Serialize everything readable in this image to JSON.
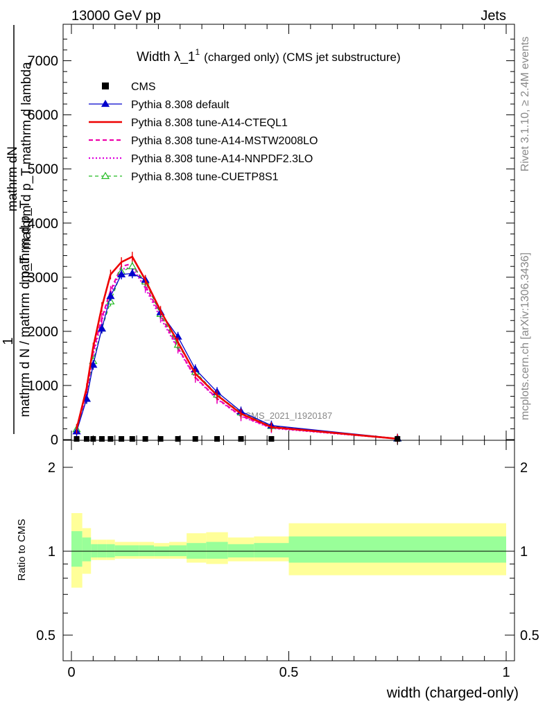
{
  "header": {
    "left": "13000 GeV pp",
    "right": "Jets"
  },
  "side": {
    "rivet": "Rivet 3.1.10, ≥ 2.4M events",
    "mcplots": "mcplots.cern.ch [arXiv:1306.3436]"
  },
  "top_panel": {
    "title_main": "Width λ_1",
    "title_sup": "1",
    "title_paren": "(charged only) (CMS jet substructure)",
    "watermark": "CMS_2021_I1920187",
    "ylabel_left": "mathrm dN",
    "ylabel_left2": "mathrm d p_T mathrm d lambda",
    "ylabel_one": "1",
    "ylabel_denom": "mathrm d N / mathrm d p_T",
    "ylabel_denom2": "mathrm d p_T",
    "yticks": [
      "0",
      "1000",
      "2000",
      "3000",
      "4000",
      "5000",
      "6000",
      "7000"
    ]
  },
  "legend": [
    {
      "label": "CMS",
      "color": "#000000",
      "style": "marker-square"
    },
    {
      "label": "Pythia 8.308 default",
      "color": "#0000cc",
      "style": "solid-triangle"
    },
    {
      "label": "Pythia 8.308 tune-A14-CTEQL1",
      "color": "#ee0000",
      "style": "solid-thick"
    },
    {
      "label": "Pythia 8.308 tune-A14-MSTW2008LO",
      "color": "#ee00aa",
      "style": "dashed"
    },
    {
      "label": "Pythia 8.308 tune-A14-NNPDF2.3LO",
      "color": "#dd00dd",
      "style": "dotted"
    },
    {
      "label": "Pythia 8.308 tune-CUETP8S1",
      "color": "#22bb22",
      "style": "dashed-open-triangle"
    }
  ],
  "ratio_panel": {
    "ylabel": "Ratio to CMS",
    "yticks": [
      "0.5",
      "1",
      "2"
    ],
    "band_inner": "#99ff99",
    "band_outer": "#ffff99"
  },
  "xaxis": {
    "label": "width (charged-only)",
    "ticks": [
      "0",
      "0.5",
      "1"
    ]
  },
  "chart_data": {
    "type": "line",
    "xlabel": "width (charged-only)",
    "xlim": [
      0,
      1
    ],
    "ylim": [
      0,
      7600
    ],
    "x": [
      0.012,
      0.035,
      0.05,
      0.07,
      0.09,
      0.115,
      0.14,
      0.17,
      0.205,
      0.245,
      0.285,
      0.335,
      0.39,
      0.46,
      0.75
    ],
    "series": [
      {
        "name": "CMS",
        "values": [
          0,
          0,
          0,
          0,
          0,
          0,
          0,
          0,
          0,
          0,
          0,
          0,
          0,
          0,
          0
        ]
      },
      {
        "name": "Pythia 8.308 default",
        "values": [
          150,
          750,
          1380,
          2050,
          2650,
          3050,
          3070,
          2950,
          2350,
          1900,
          1300,
          880,
          520,
          260,
          20
        ]
      },
      {
        "name": "Pythia 8.308 tune-A14-CTEQL1",
        "values": [
          200,
          950,
          1700,
          2450,
          3050,
          3280,
          3380,
          2950,
          2380,
          1800,
          1220,
          820,
          480,
          230,
          15
        ]
      },
      {
        "name": "Pythia 8.308 tune-A14-MSTW2008LO",
        "values": [
          180,
          880,
          1620,
          2250,
          2750,
          3200,
          3250,
          2850,
          2300,
          1700,
          1150,
          760,
          440,
          220,
          15
        ]
      },
      {
        "name": "Pythia 8.308 tune-A14-NNPDF2.3LO",
        "values": [
          170,
          840,
          1560,
          2200,
          2700,
          3150,
          3180,
          2800,
          2250,
          1680,
          1140,
          750,
          430,
          210,
          15
        ]
      },
      {
        "name": "Pythia 8.308 tune-CUETP8S1",
        "values": [
          190,
          750,
          1450,
          2050,
          2550,
          3100,
          3200,
          2920,
          2320,
          1750,
          1250,
          830,
          500,
          250,
          18
        ]
      }
    ],
    "ratio": {
      "ylabel": "Ratio to CMS",
      "ylim": [
        0.4,
        2.4
      ],
      "bins": [
        [
          0,
          0.025
        ],
        [
          0.025,
          0.045
        ],
        [
          0.045,
          0.06
        ],
        [
          0.06,
          0.08
        ],
        [
          0.08,
          0.1
        ],
        [
          0.1,
          0.13
        ],
        [
          0.13,
          0.155
        ],
        [
          0.155,
          0.19
        ],
        [
          0.19,
          0.225
        ],
        [
          0.225,
          0.265
        ],
        [
          0.265,
          0.31
        ],
        [
          0.31,
          0.36
        ],
        [
          0.36,
          0.42
        ],
        [
          0.42,
          0.5
        ],
        [
          0.5,
          1.0
        ]
      ],
      "inner": [
        [
          0.88,
          1.18
        ],
        [
          0.92,
          1.12
        ],
        [
          0.95,
          1.06
        ],
        [
          0.95,
          1.06
        ],
        [
          0.95,
          1.06
        ],
        [
          0.96,
          1.05
        ],
        [
          0.96,
          1.05
        ],
        [
          0.96,
          1.05
        ],
        [
          0.96,
          1.04
        ],
        [
          0.96,
          1.05
        ],
        [
          0.94,
          1.07
        ],
        [
          0.94,
          1.08
        ],
        [
          0.95,
          1.06
        ],
        [
          0.95,
          1.07
        ],
        [
          0.91,
          1.13
        ]
      ],
      "outer": [
        [
          0.74,
          1.37
        ],
        [
          0.83,
          1.21
        ],
        [
          0.93,
          1.1
        ],
        [
          0.93,
          1.1
        ],
        [
          0.93,
          1.1
        ],
        [
          0.94,
          1.08
        ],
        [
          0.94,
          1.08
        ],
        [
          0.94,
          1.08
        ],
        [
          0.94,
          1.07
        ],
        [
          0.94,
          1.08
        ],
        [
          0.91,
          1.16
        ],
        [
          0.9,
          1.17
        ],
        [
          0.92,
          1.12
        ],
        [
          0.92,
          1.13
        ],
        [
          0.82,
          1.26
        ]
      ]
    }
  }
}
